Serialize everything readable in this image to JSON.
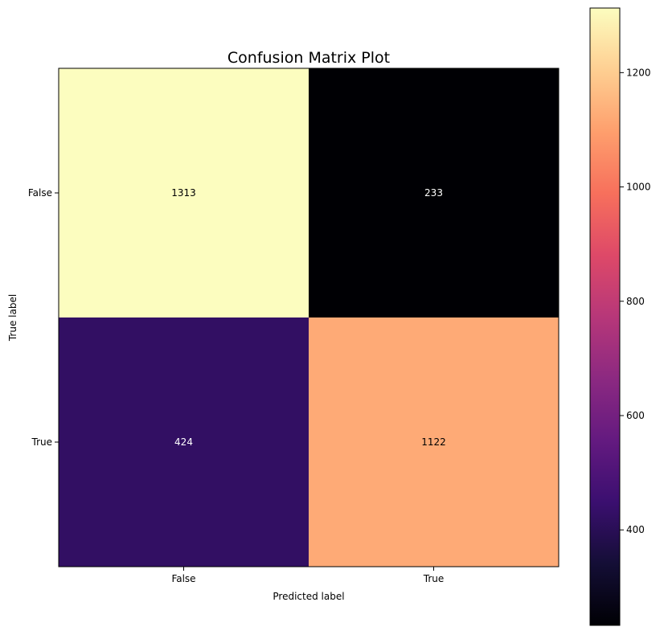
{
  "chart_data": {
    "type": "heatmap",
    "title": "Confusion Matrix Plot",
    "xlabel": "Predicted label",
    "ylabel": "True label",
    "x_categories": [
      "False",
      "True"
    ],
    "y_categories": [
      "False",
      "True"
    ],
    "values": [
      [
        1313,
        233
      ],
      [
        424,
        1122
      ]
    ],
    "colormap": "magma",
    "colorbar": {
      "range": [
        233,
        1313
      ],
      "ticks": [
        400,
        600,
        800,
        1000,
        1200
      ],
      "tick_labels": [
        "400",
        "600",
        "800",
        "1000",
        "1200"
      ]
    },
    "text_colors": {
      "dark_cell": "#ffffff",
      "light_cell": "#000000"
    },
    "grid": false
  }
}
